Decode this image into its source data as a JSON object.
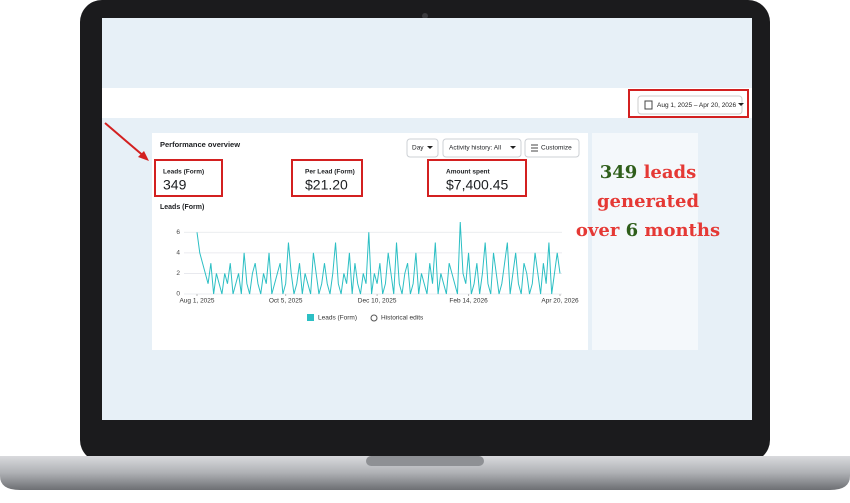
{
  "date_range": "Aug 1, 2025 – Apr 20, 2026",
  "panel": {
    "title": "Performance overview",
    "controls": [
      "Day",
      "Activity history: All",
      "Customize"
    ],
    "metrics": [
      {
        "label": "Leads (Form)",
        "value": "349"
      },
      {
        "label": "Per Lead (Form)",
        "value": "$21.20"
      },
      {
        "label": "Amount spent",
        "value": "$7,400.45"
      }
    ]
  },
  "chart_data": {
    "type": "line",
    "title": "Leads (Form)",
    "series": [
      {
        "name": "Leads (Form)",
        "color": "#2cbfc4",
        "values": [
          6,
          4,
          3,
          2,
          1,
          3,
          0,
          2,
          1,
          0,
          2,
          1,
          3,
          0,
          1,
          2,
          0,
          4,
          1,
          0,
          2,
          3,
          1,
          0,
          2,
          1,
          4,
          0,
          1,
          2,
          3,
          0,
          1,
          5,
          2,
          0,
          1,
          3,
          0,
          2,
          1,
          0,
          4,
          2,
          0,
          1,
          3,
          1,
          0,
          2,
          5,
          1,
          0,
          2,
          1,
          4,
          0,
          3,
          1,
          0,
          2,
          1,
          6,
          0,
          2,
          1,
          3,
          0,
          1,
          4,
          2,
          0,
          5,
          1,
          0,
          2,
          3,
          0,
          1,
          4,
          0,
          2,
          1,
          0,
          3,
          1,
          5,
          0,
          2,
          1,
          0,
          3,
          2,
          1,
          0,
          7,
          2,
          1,
          4,
          0,
          1,
          3,
          0,
          2,
          5,
          1,
          0,
          4,
          2,
          0,
          1,
          3,
          5,
          0,
          2,
          4,
          1,
          0,
          3,
          2,
          0,
          1,
          4,
          2,
          0,
          3,
          1,
          5,
          0,
          2,
          4,
          2
        ]
      }
    ],
    "legend_extra": "Historical edits",
    "xlim": [
      0,
      131
    ],
    "xticks": [
      {
        "value": 0,
        "label": "Aug 1, 2025"
      },
      {
        "value": 32,
        "label": "Oct 5, 2025"
      },
      {
        "value": 65,
        "label": "Dec 10, 2025"
      },
      {
        "value": 98,
        "label": "Feb 14, 2026"
      },
      {
        "value": 131,
        "label": "Apr 20, 2026"
      }
    ],
    "ylim": [
      0,
      7
    ],
    "yticks": [
      0,
      2,
      4,
      6
    ],
    "grid": true
  },
  "annotation": [
    [
      {
        "text": "349",
        "color": "#2e5e1a"
      },
      {
        "text": "leads",
        "color": "#e53935"
      }
    ],
    [
      {
        "text": "generated",
        "color": "#e53935"
      }
    ],
    [
      {
        "text": "over",
        "color": "#e53935"
      },
      {
        "text": "6",
        "color": "#2e5e1a"
      },
      {
        "text": "months",
        "color": "#e53935"
      }
    ]
  ]
}
